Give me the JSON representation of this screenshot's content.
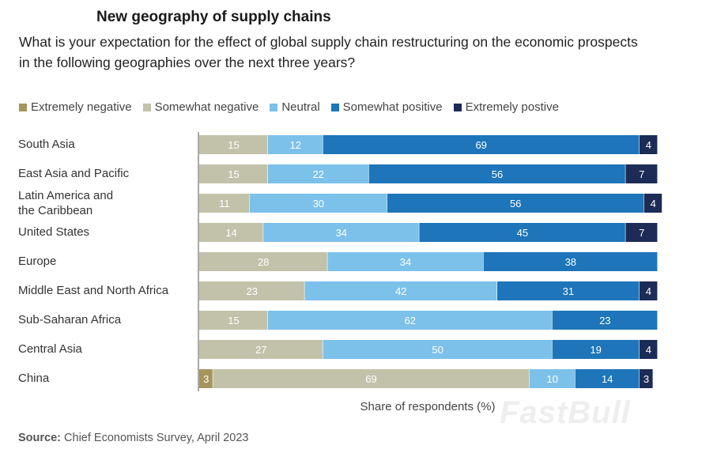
{
  "header": {
    "title": "New geography of supply chains",
    "subtitle": "What is your expectation for the effect of global supply chain restructuring on the economic prospects in the following geographies over the next three years?"
  },
  "footer": {
    "source_label": "Source:",
    "source_text": " Chief Economists Survey, April 2023",
    "watermark": "FastBull"
  },
  "chart_data": {
    "type": "bar",
    "orientation": "horizontal",
    "stacked": true,
    "xlabel": "Share of respondents (%)",
    "xlim": [
      0,
      100
    ],
    "legend_position": "top",
    "categories": [
      "South Asia",
      "East Asia and Pacific",
      "Latin America and the Caribbean",
      "United States",
      "Europe",
      "Middle East and North Africa",
      "Sub-Saharan Africa",
      "Central Asia",
      "China"
    ],
    "series": [
      {
        "name": "Extremely negative",
        "color": "#a6955c",
        "values": [
          0,
          0,
          0,
          0,
          0,
          0,
          0,
          0,
          3
        ]
      },
      {
        "name": "Somewhat negative",
        "color": "#c2c2aa",
        "values": [
          15,
          15,
          11,
          14,
          28,
          23,
          15,
          27,
          69
        ]
      },
      {
        "name": "Neutral",
        "color": "#7cc1ea",
        "values": [
          12,
          22,
          30,
          34,
          34,
          42,
          62,
          50,
          10
        ]
      },
      {
        "name": "Somewhat positive",
        "color": "#1e75b9",
        "values": [
          69,
          56,
          56,
          45,
          38,
          31,
          23,
          19,
          14
        ]
      },
      {
        "name": "Extremely postive",
        "color": "#1d2b57",
        "values": [
          4,
          7,
          4,
          7,
          0,
          4,
          0,
          4,
          3
        ]
      }
    ]
  }
}
